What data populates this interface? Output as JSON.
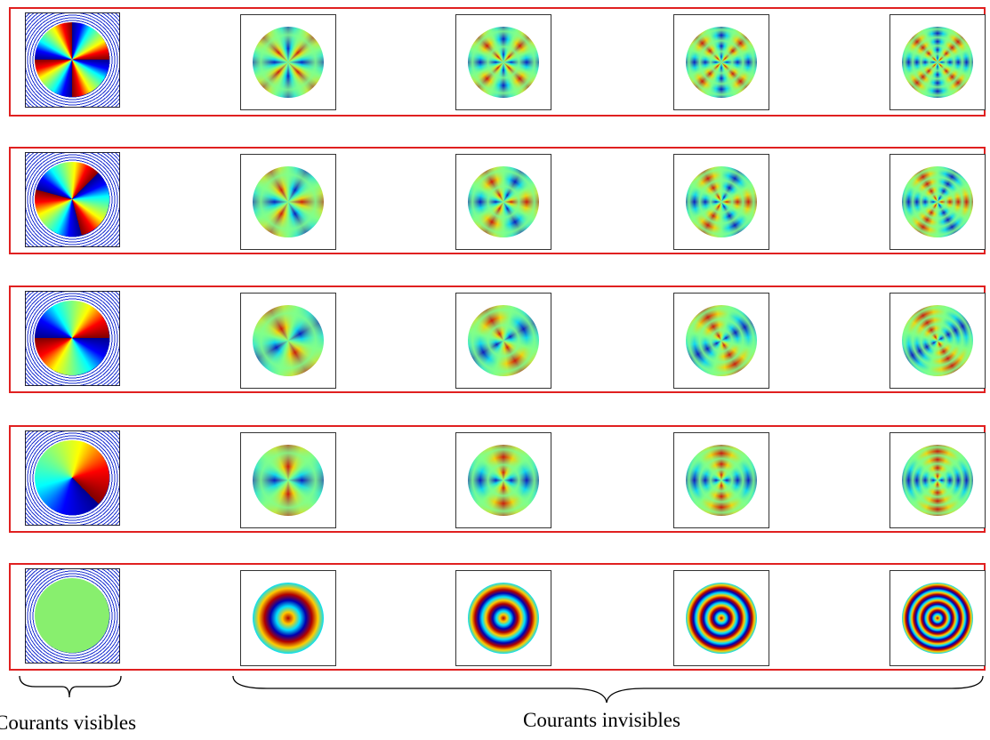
{
  "labels": {
    "visible": "Courants visibles",
    "invisible": "Courants invisibles"
  }
}
